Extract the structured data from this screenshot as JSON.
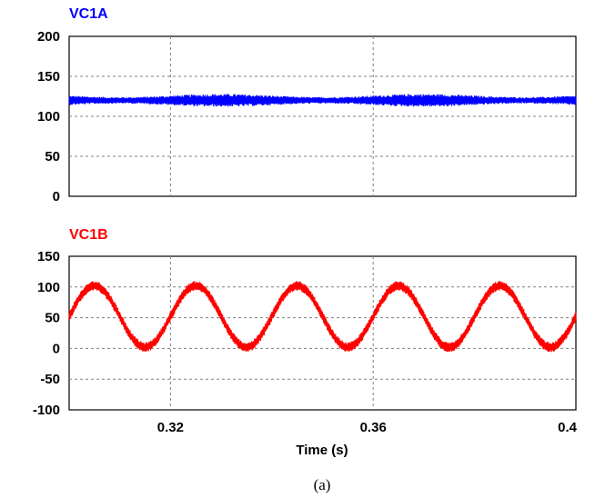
{
  "caption": "(a)",
  "chart_data": [
    {
      "type": "line",
      "title": "VC1A",
      "title_color": "#0000FF",
      "series": [
        {
          "name": "VC1A",
          "color": "#0000FF",
          "mean": 120,
          "ripple_band": [
            112,
            128
          ],
          "sine_amplitude": 0,
          "frequency_hz": 50
        }
      ],
      "x_range": [
        0.3,
        0.4
      ],
      "ylim": [
        0,
        200
      ],
      "yticks": [
        0,
        50,
        100,
        150,
        200
      ],
      "ytick_labels": [
        "0",
        "50",
        "100",
        "150",
        "200"
      ],
      "xticks": [
        0.32,
        0.36,
        0.4
      ],
      "grid": true
    },
    {
      "type": "line",
      "title": "VC1B",
      "title_color": "#FF0000",
      "series": [
        {
          "name": "VC1B",
          "color": "#FF0000",
          "mean": 52,
          "sine_amplitude": 50,
          "ripple_band": [
            -8,
            8
          ],
          "frequency_hz": 50,
          "peak_times": [
            0.305,
            0.325,
            0.345,
            0.365,
            0.385
          ]
        }
      ],
      "x_range": [
        0.3,
        0.4
      ],
      "ylim": [
        -100,
        150
      ],
      "yticks": [
        -100,
        -50,
        0,
        50,
        100,
        150
      ],
      "ytick_labels": [
        "-100",
        "-50",
        "0",
        "50",
        "100",
        "150"
      ],
      "xticks": [
        0.32,
        0.36,
        0.4
      ],
      "xtick_labels": [
        "0.32",
        "0.36",
        "0.4"
      ],
      "xlabel": "Time (s)",
      "grid": true
    }
  ]
}
